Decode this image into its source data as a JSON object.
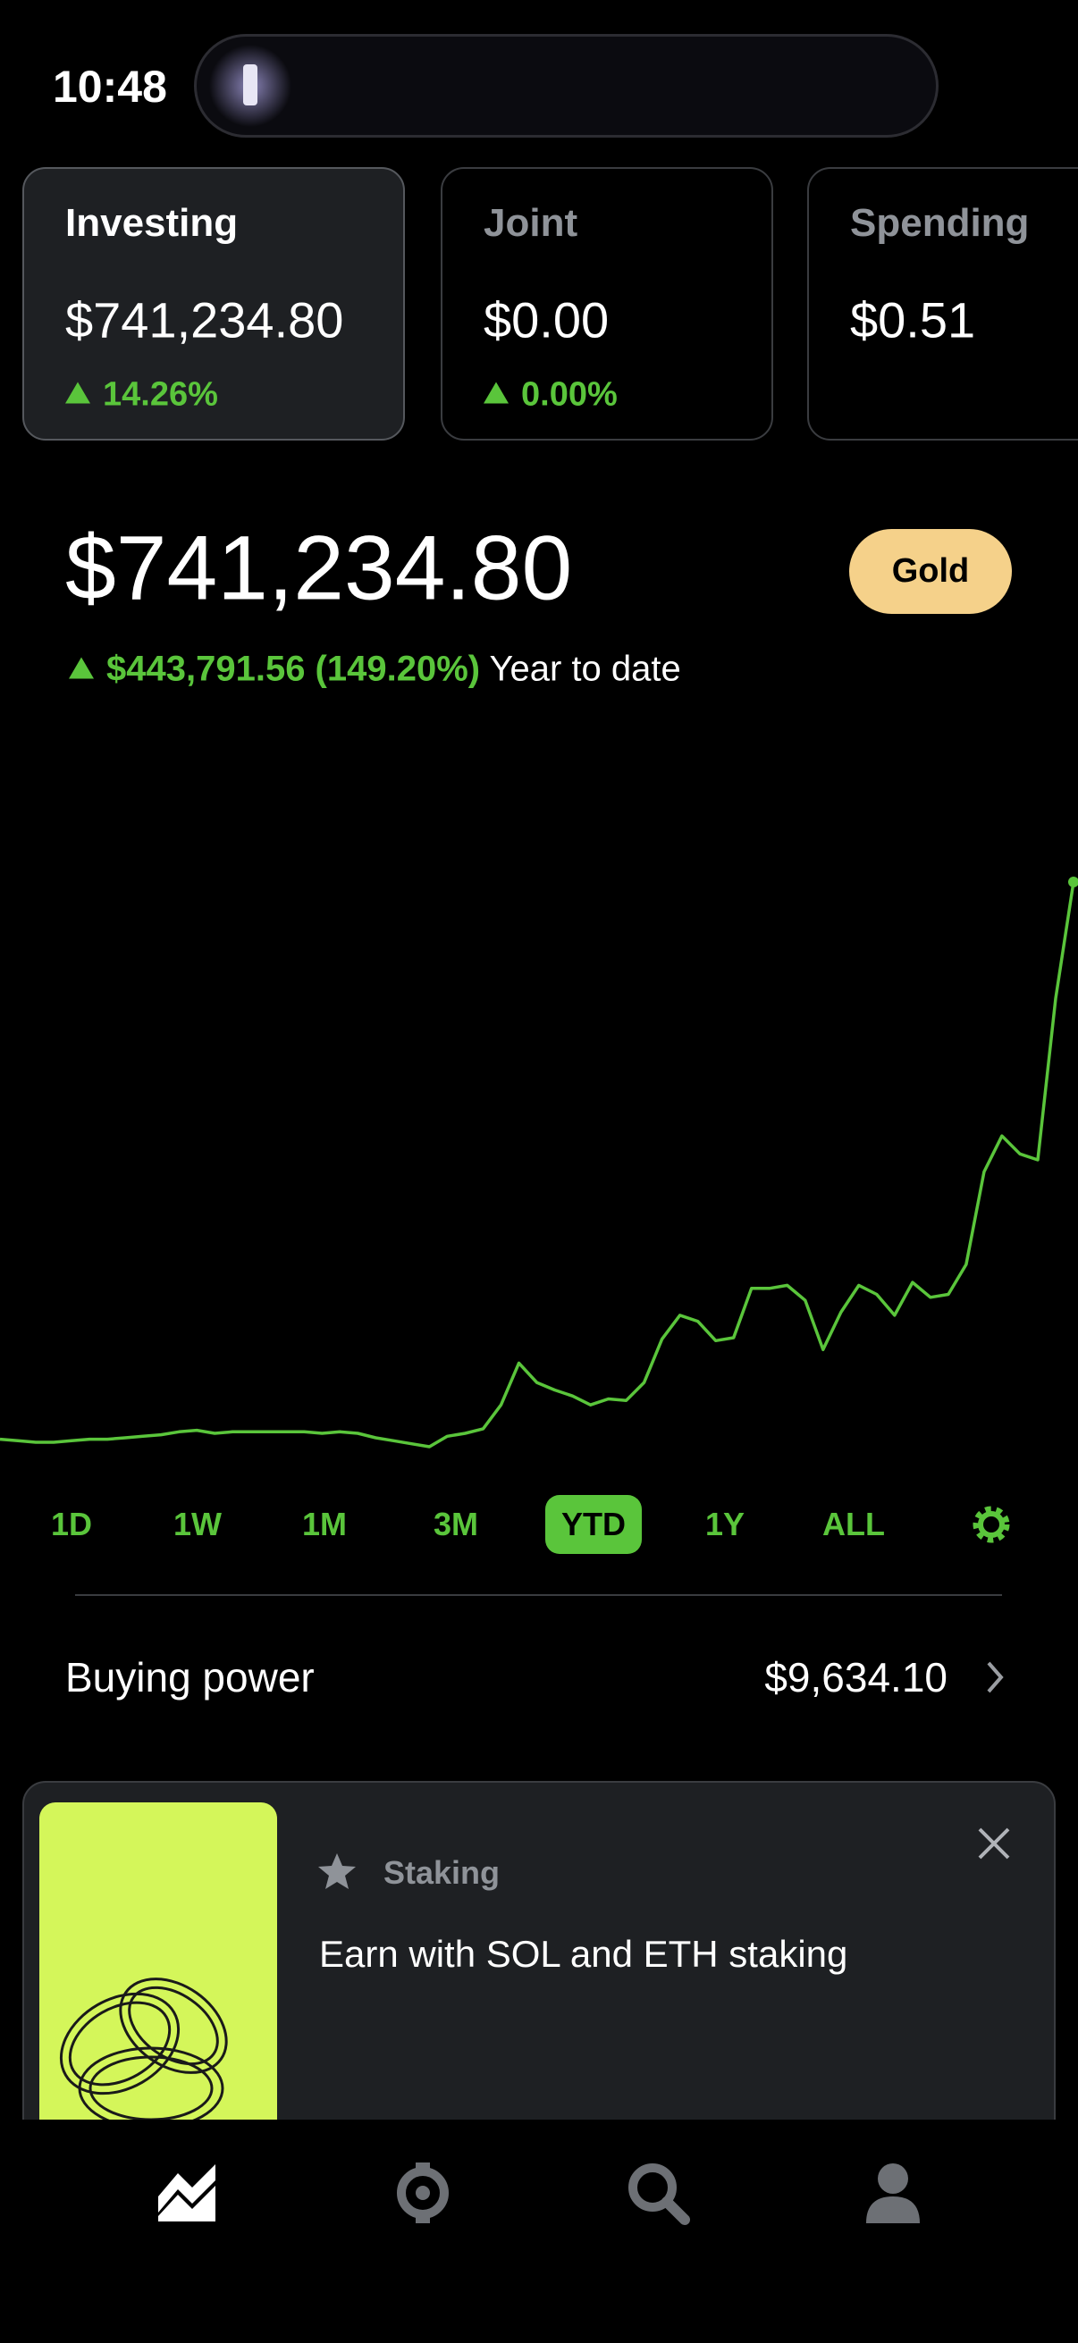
{
  "status_bar": {
    "time": "10:48"
  },
  "accounts": [
    {
      "name": "Investing",
      "amount": "$741,234.80",
      "change": "14.26%"
    },
    {
      "name": "Joint",
      "amount": "$0.00",
      "change": "0.00%"
    },
    {
      "name": "Spending",
      "amount": "$0.51"
    }
  ],
  "portfolio": {
    "value": "$741,234.80",
    "badge": "Gold",
    "change": "$443,791.56 (149.20%)",
    "period": "Year to date"
  },
  "chart": {
    "type": "line",
    "color": "#5ac53b",
    "values": [
      299810,
      298626,
      297443,
      297443,
      298626,
      299810,
      299810,
      300993,
      302177,
      303360,
      305727,
      306910,
      304544,
      305727,
      305727,
      305727,
      305727,
      305727,
      304544,
      305727,
      304544,
      300993,
      298626,
      296260,
      293893,
      302177,
      304544,
      308094,
      327028,
      360163,
      344779,
      338862,
      334128,
      327028,
      331762,
      330578,
      344779,
      379098,
      398032,
      393298,
      377914,
      380281,
      419333,
      419333,
      421700,
      409866,
      370812,
      400398,
      421700,
      414599,
      398032,
      424066,
      412232,
      414599,
      438267,
      511638,
      540040,
      525839,
      521105,
      648913,
      741234.8
    ]
  },
  "ranges": [
    "1D",
    "1W",
    "1M",
    "3M",
    "YTD",
    "1Y",
    "ALL"
  ],
  "selected_range": 4,
  "buying_power": {
    "label": "Buying power",
    "value": "$9,634.10"
  },
  "promo": {
    "tag": "Staking",
    "text": "Earn with SOL and ETH staking"
  }
}
